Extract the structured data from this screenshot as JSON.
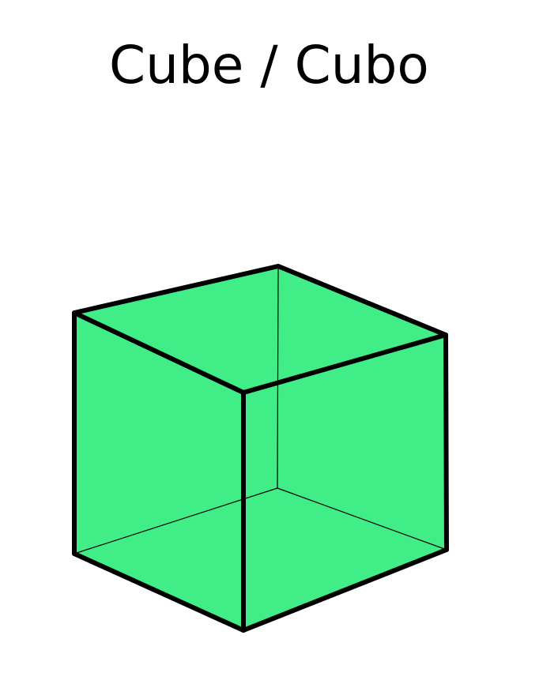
{
  "title": "Cube / Cubo",
  "shape": {
    "name": "cube",
    "fill_color": "#41ED87",
    "edge_color": "#000000",
    "hidden_edges_shown": true
  }
}
